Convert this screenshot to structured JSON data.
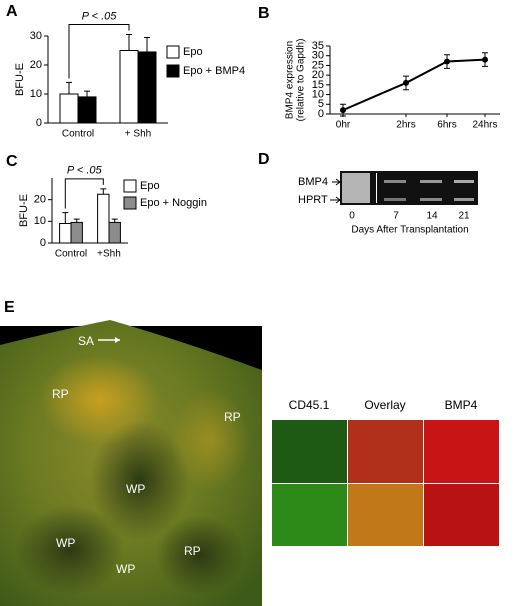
{
  "chart_data": [
    {
      "type": "bar",
      "panel": "A",
      "ylabel": "BFU-E",
      "categories": [
        "Control",
        "+ Shh"
      ],
      "series": [
        {
          "name": "Epo",
          "color": "#ffffff",
          "values": [
            10,
            25
          ],
          "errors": [
            4,
            5.5
          ]
        },
        {
          "name": "Epo + BMP4",
          "color": "#000000",
          "values": [
            9,
            24.5
          ],
          "errors": [
            2,
            5
          ]
        }
      ],
      "ylim": [
        0,
        30
      ],
      "yticks": [
        0,
        10,
        20,
        30
      ],
      "annotation": "P < .05"
    },
    {
      "type": "line",
      "panel": "B",
      "ylabel": [
        "BMP4 expression",
        "(relative to Gapdh)"
      ],
      "categories": [
        "0hr",
        "2hrs",
        "6hrs",
        "24hrs"
      ],
      "values": [
        2,
        16,
        27,
        28
      ],
      "errors": [
        3,
        3.5,
        3.5,
        3.5
      ],
      "color": "#000000",
      "ylim": [
        0,
        35
      ],
      "yticks": [
        0,
        5,
        10,
        15,
        20,
        25,
        30,
        35
      ]
    },
    {
      "type": "bar",
      "panel": "C",
      "ylabel": "BFU-E",
      "categories": [
        "Control",
        "+Shh"
      ],
      "series": [
        {
          "name": "Epo",
          "color": "#ffffff",
          "values": [
            9,
            22.5
          ],
          "errors": [
            5,
            2.5
          ]
        },
        {
          "name": "Epo + Noggin",
          "color": "#8c8c8c",
          "values": [
            9.5,
            9.5
          ],
          "errors": [
            1.5,
            1.5
          ]
        }
      ],
      "ylim": [
        0,
        30
      ],
      "yticks": [
        0,
        10,
        20
      ],
      "annotation": "P < .05"
    }
  ],
  "gel": {
    "panel": "D",
    "bands": [
      "BMP4",
      "HPRT"
    ],
    "lanes": [
      "0",
      "7",
      "14",
      "21"
    ],
    "xlabel": "Days After Transplantation"
  },
  "images": {
    "panel": "E",
    "regions": [
      "SA",
      "RP",
      "RP",
      "WP",
      "WP",
      "WP",
      "RP"
    ],
    "columns": [
      "CD45.1",
      "Overlay",
      "BMP4"
    ]
  }
}
